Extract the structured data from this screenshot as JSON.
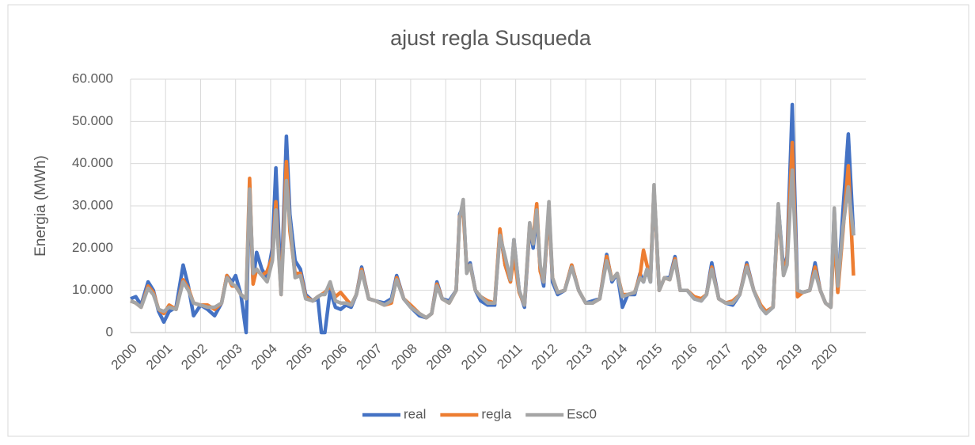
{
  "chart_data": {
    "type": "line",
    "title": "ajust regla Susqueda",
    "y_label": "Energia (MWh)",
    "x": [
      2000.0,
      2000.15,
      2000.3,
      2000.5,
      2000.65,
      2000.8,
      2000.95,
      2001.1,
      2001.3,
      2001.5,
      2001.65,
      2001.8,
      2002.0,
      2002.2,
      2002.4,
      2002.6,
      2002.75,
      2002.9,
      2003.0,
      2003.15,
      2003.3,
      2003.4,
      2003.5,
      2003.6,
      2003.75,
      2003.9,
      2004.05,
      2004.15,
      2004.3,
      2004.45,
      2004.55,
      2004.7,
      2004.85,
      2005.0,
      2005.2,
      2005.35,
      2005.45,
      2005.55,
      2005.7,
      2005.85,
      2006.0,
      2006.15,
      2006.3,
      2006.45,
      2006.6,
      2006.8,
      2007.0,
      2007.25,
      2007.45,
      2007.6,
      2007.8,
      2008.0,
      2008.25,
      2008.45,
      2008.6,
      2008.75,
      2008.9,
      2009.1,
      2009.3,
      2009.4,
      2009.5,
      2009.6,
      2009.7,
      2009.85,
      2010.0,
      2010.2,
      2010.4,
      2010.55,
      2010.7,
      2010.85,
      2010.95,
      2011.1,
      2011.25,
      2011.4,
      2011.5,
      2011.6,
      2011.7,
      2011.8,
      2011.95,
      2012.05,
      2012.2,
      2012.4,
      2012.6,
      2012.8,
      2013.0,
      2013.2,
      2013.4,
      2013.6,
      2013.75,
      2013.9,
      2014.05,
      2014.2,
      2014.4,
      2014.55,
      2014.65,
      2014.75,
      2014.85,
      2014.95,
      2015.1,
      2015.25,
      2015.4,
      2015.55,
      2015.7,
      2015.9,
      2016.1,
      2016.3,
      2016.45,
      2016.6,
      2016.8,
      2017.0,
      2017.2,
      2017.4,
      2017.6,
      2017.8,
      2018.0,
      2018.15,
      2018.35,
      2018.5,
      2018.65,
      2018.75,
      2018.9,
      2019.05,
      2019.2,
      2019.4,
      2019.55,
      2019.7,
      2019.85,
      2020.0,
      2020.1,
      2020.2,
      2020.35,
      2020.5,
      2020.65
    ],
    "series": [
      {
        "name": "real",
        "color": "#4472c4",
        "values": [
          8000,
          8500,
          6500,
          12000,
          10000,
          5000,
          2500,
          5000,
          6000,
          16000,
          11000,
          4000,
          6500,
          5500,
          4000,
          7000,
          13500,
          12000,
          13500,
          9000,
          0,
          35000,
          12000,
          19000,
          15000,
          13000,
          20000,
          39000,
          10000,
          46500,
          28000,
          17000,
          15000,
          9000,
          7500,
          8000,
          0,
          0,
          10000,
          6000,
          5500,
          6500,
          6000,
          9000,
          15500,
          8000,
          7500,
          7000,
          8000,
          13500,
          8000,
          6000,
          4000,
          3500,
          4500,
          12000,
          8000,
          7500,
          10000,
          28000,
          30000,
          15000,
          16500,
          10000,
          7500,
          6500,
          6500,
          24000,
          16000,
          12000,
          22000,
          10000,
          6000,
          25000,
          20000,
          28000,
          15000,
          11000,
          30000,
          12000,
          9000,
          10000,
          16000,
          10000,
          7000,
          7500,
          8000,
          18500,
          12000,
          14000,
          6000,
          9000,
          9000,
          14000,
          12000,
          15000,
          12000,
          34000,
          10000,
          13000,
          13000,
          18000,
          10000,
          10000,
          8000,
          7500,
          9000,
          16500,
          8000,
          7000,
          6500,
          9000,
          16500,
          10000,
          6000,
          4500,
          6000,
          30000,
          15000,
          18000,
          54000,
          10000,
          9500,
          10000,
          16500,
          10000,
          7000,
          6000,
          29000,
          10000,
          29000,
          47000,
          23000
        ]
      },
      {
        "name": "regla",
        "color": "#ed7d31",
        "values": [
          7500,
          7000,
          6000,
          11000,
          9500,
          5500,
          4500,
          6500,
          5500,
          12500,
          10500,
          7000,
          6500,
          6500,
          5500,
          7000,
          13500,
          11000,
          11000,
          9000,
          8000,
          36500,
          11500,
          15000,
          13500,
          14500,
          18000,
          31000,
          9000,
          40500,
          24000,
          14000,
          14000,
          8500,
          7500,
          8500,
          9000,
          9500,
          11000,
          8500,
          9500,
          8000,
          6500,
          9000,
          15000,
          8000,
          7500,
          6500,
          7000,
          13000,
          8000,
          6500,
          4500,
          3500,
          4500,
          11500,
          8000,
          7000,
          10000,
          27500,
          29000,
          15000,
          16000,
          10000,
          8500,
          7500,
          7000,
          24500,
          16000,
          12000,
          18000,
          9500,
          6500,
          25500,
          22000,
          30500,
          14500,
          12000,
          29000,
          13000,
          9500,
          10000,
          16000,
          10000,
          7000,
          7000,
          8000,
          18000,
          12500,
          14000,
          9000,
          9000,
          9500,
          13500,
          19500,
          16000,
          13000,
          34000,
          10000,
          13000,
          12500,
          17500,
          10000,
          10000,
          8500,
          8000,
          9000,
          15500,
          8000,
          7000,
          7500,
          9000,
          16000,
          10000,
          6500,
          5000,
          6000,
          29000,
          14000,
          17500,
          45000,
          8500,
          9500,
          10000,
          15500,
          10000,
          7000,
          6000,
          24000,
          9500,
          24000,
          39500,
          13500
        ]
      },
      {
        "name": "Esc0",
        "color": "#a5a5a5",
        "values": [
          7500,
          7000,
          6000,
          10500,
          9000,
          5500,
          5000,
          6000,
          5500,
          12000,
          10000,
          7000,
          6500,
          6000,
          6000,
          7000,
          13000,
          11500,
          11000,
          9000,
          8000,
          34000,
          14000,
          15000,
          13500,
          12000,
          17000,
          29000,
          9000,
          36000,
          26000,
          13000,
          13500,
          8000,
          7500,
          8500,
          9000,
          9000,
          12000,
          7500,
          7000,
          7000,
          6500,
          9000,
          14500,
          8000,
          7500,
          6500,
          7500,
          12500,
          8000,
          6000,
          4500,
          3500,
          4500,
          11000,
          8000,
          7000,
          10000,
          27000,
          31500,
          14000,
          16000,
          10000,
          8500,
          7000,
          7000,
          23000,
          18000,
          12500,
          22000,
          10000,
          6500,
          26000,
          21000,
          29000,
          16000,
          12000,
          31000,
          13000,
          9500,
          10000,
          15500,
          10000,
          7000,
          7000,
          8000,
          17000,
          12500,
          14000,
          8500,
          9000,
          9500,
          13000,
          12000,
          15000,
          12000,
          35000,
          10000,
          13000,
          12500,
          17000,
          10000,
          10000,
          8000,
          7500,
          9000,
          15000,
          8000,
          7000,
          7000,
          9000,
          15500,
          10000,
          6000,
          4500,
          6000,
          30500,
          13500,
          16000,
          38500,
          10000,
          9500,
          10000,
          14500,
          10000,
          7000,
          6000,
          29500,
          11000,
          25000,
          34500,
          23000
        ]
      }
    ],
    "xlim": [
      2000,
      2021
    ],
    "xticks": [
      2000,
      2001,
      2002,
      2003,
      2004,
      2005,
      2006,
      2007,
      2008,
      2009,
      2010,
      2011,
      2012,
      2013,
      2014,
      2015,
      2016,
      2017,
      2018,
      2019,
      2020
    ],
    "ylim": [
      0,
      60000
    ],
    "yticks": [
      0,
      {
        "value": 10000,
        "label": "10.000"
      },
      {
        "value": 20000,
        "label": "20.000"
      },
      {
        "value": 30000,
        "label": "30.000"
      },
      {
        "value": 40000,
        "label": "40.000"
      },
      {
        "value": 50000,
        "label": "50.000"
      },
      {
        "value": 60000,
        "label": "60.000"
      }
    ],
    "grid": true,
    "legend": "bottom"
  }
}
